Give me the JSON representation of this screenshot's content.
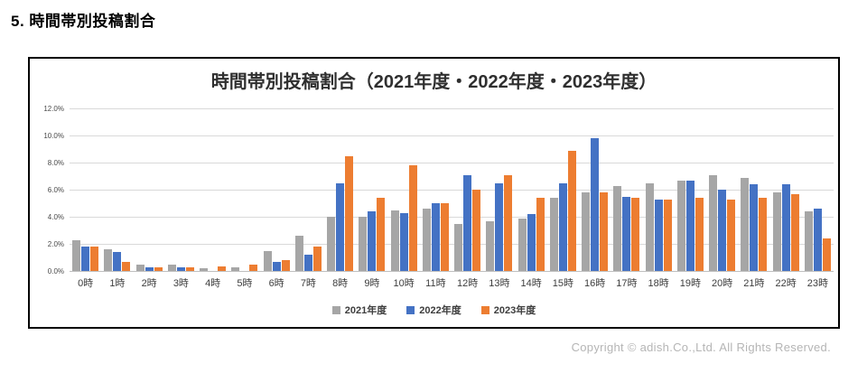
{
  "page": {
    "section_title": "5.  時間帯別投稿割合"
  },
  "chart_data": {
    "type": "bar",
    "title": "時間帯別投稿割合（2021年度・2022年度・2023年度）",
    "categories": [
      "0時",
      "1時",
      "2時",
      "3時",
      "4時",
      "5時",
      "6時",
      "7時",
      "8時",
      "9時",
      "10時",
      "11時",
      "12時",
      "13時",
      "14時",
      "15時",
      "16時",
      "17時",
      "18時",
      "19時",
      "20時",
      "21時",
      "22時",
      "23時"
    ],
    "series": [
      {
        "name": "2021年度",
        "color": "#a6a6a6",
        "values": [
          2.3,
          1.6,
          0.5,
          0.5,
          0.2,
          0.3,
          1.5,
          2.6,
          4.0,
          4.0,
          4.5,
          4.6,
          3.5,
          3.7,
          3.9,
          5.4,
          5.8,
          6.3,
          6.5,
          6.7,
          7.1,
          6.9,
          5.8,
          4.4
        ]
      },
      {
        "name": "2022年度",
        "color": "#4472c4",
        "values": [
          1.8,
          1.4,
          0.25,
          0.25,
          0.0,
          0.0,
          0.7,
          1.2,
          6.5,
          4.4,
          4.3,
          5.0,
          7.1,
          6.5,
          4.2,
          6.5,
          9.8,
          5.5,
          5.3,
          6.7,
          6.0,
          6.4,
          6.4,
          4.6
        ]
      },
      {
        "name": "2023年度",
        "color": "#ed7d31",
        "values": [
          1.8,
          0.7,
          0.25,
          0.3,
          0.35,
          0.5,
          0.8,
          1.8,
          8.5,
          5.4,
          7.8,
          5.0,
          6.0,
          7.1,
          5.4,
          8.9,
          5.8,
          5.4,
          5.3,
          5.4,
          5.3,
          5.4,
          5.7,
          2.4
        ]
      }
    ],
    "xlabel": "",
    "ylabel": "",
    "ylim": [
      0,
      12
    ],
    "ytick_labels": [
      "0.0%",
      "2.0%",
      "4.0%",
      "6.0%",
      "8.0%",
      "10.0%",
      "12.0%"
    ],
    "grid": true,
    "legend_position": "bottom"
  },
  "footer": {
    "copyright": "Copyright © adish.Co.,Ltd.  All Rights Reserved."
  }
}
